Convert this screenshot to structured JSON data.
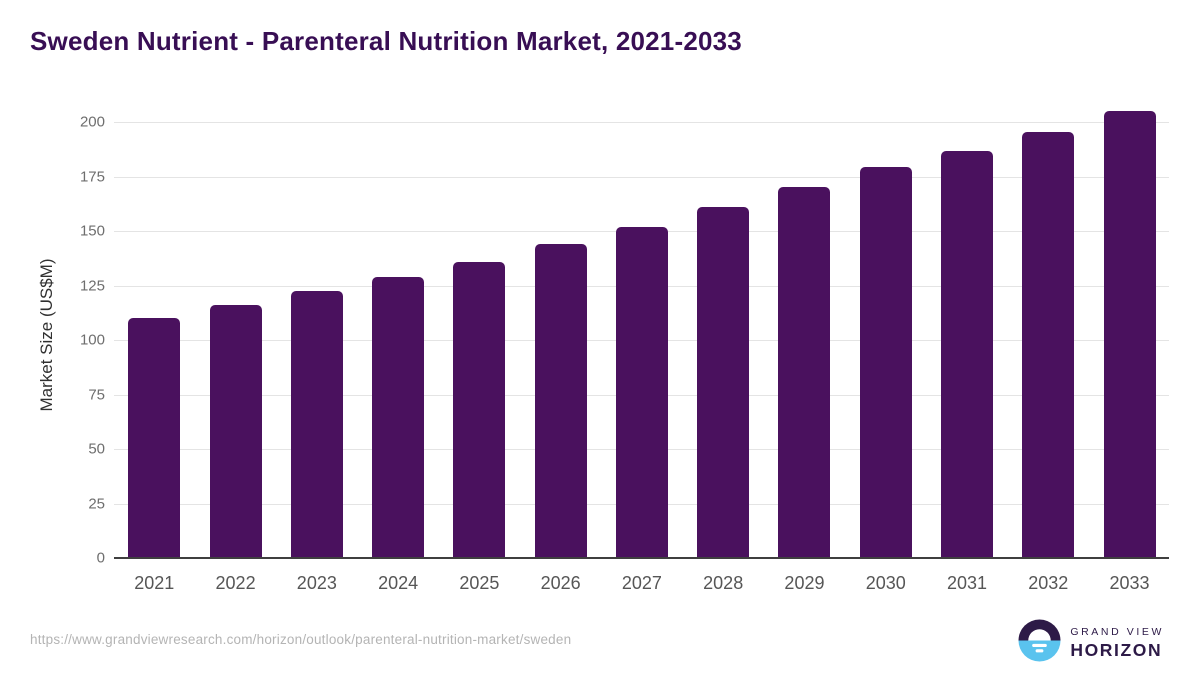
{
  "title": "Sweden Nutrient - Parenteral Nutrition Market, 2021-2033",
  "chart_data": {
    "type": "bar",
    "title": "Sweden Nutrient - Parenteral Nutrition Market, 2021-2033",
    "categories": [
      "2021",
      "2022",
      "2023",
      "2024",
      "2025",
      "2026",
      "2027",
      "2028",
      "2029",
      "2030",
      "2031",
      "2032",
      "2033"
    ],
    "values": [
      110,
      116,
      122.5,
      129,
      136,
      144,
      152,
      161,
      170,
      179.5,
      186.5,
      195.5,
      205
    ],
    "xlabel": "",
    "ylabel": "Market Size (US$M)",
    "ylim": [
      0,
      200
    ],
    "yticks": [
      0,
      25,
      50,
      75,
      100,
      125,
      150,
      175,
      200
    ],
    "grid": true,
    "legend": false,
    "bar_color": "#4a115e"
  },
  "footer": {
    "source_url": "https://www.grandviewresearch.com/horizon/outlook/parenteral-nutrition-market/sweden",
    "logo": {
      "brand_top": "GRAND VIEW",
      "brand_bottom": "HORIZON",
      "icon": "horizon-sun-icon",
      "icon_top_color": "#2d1a47",
      "icon_bottom_color": "#5ac3ee"
    }
  },
  "colors": {
    "title": "#380e54",
    "bar": "#4a115e",
    "gridline": "#e4e4e4",
    "axis_line": "#3f3f3f",
    "y_tick_text": "#6e6e6e",
    "x_tick_text": "#565656",
    "url_text": "#b4b4b4",
    "background": "#ffffff"
  }
}
